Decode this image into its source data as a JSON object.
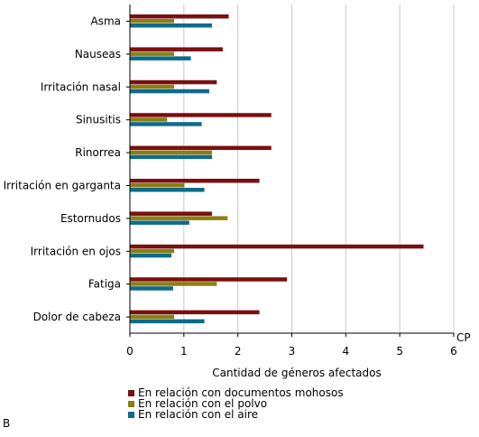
{
  "chart_data": {
    "type": "bar",
    "orientation": "horizontal",
    "categories": [
      "Asma",
      "Nauseas",
      "Irritación nasal",
      "Sinusitis",
      "Rinorrea",
      "Irritación en garganta",
      "Estornudos",
      "Irritación en ojos",
      "Fatiga",
      "Dolor de cabeza"
    ],
    "series": [
      {
        "name": "En relación con documentos mohosos",
        "color": "#7b0f0f",
        "values": [
          1.83,
          1.72,
          1.61,
          2.62,
          2.62,
          2.4,
          1.52,
          5.44,
          2.91,
          2.4
        ]
      },
      {
        "name": "En relación con el polvo",
        "color": "#8c7f12",
        "values": [
          0.82,
          0.82,
          0.82,
          0.69,
          1.52,
          1.01,
          1.81,
          0.82,
          1.61,
          0.82
        ]
      },
      {
        "name": "En relación con el aire",
        "color": "#0f6a8c",
        "values": [
          1.52,
          1.13,
          1.47,
          1.33,
          1.52,
          1.38,
          1.1,
          0.77,
          0.8,
          1.38
        ]
      }
    ],
    "xlabel": "Cantidad de géneros afectados",
    "xaxis_unit": "CP",
    "xlim": [
      0,
      6
    ],
    "xticks": [
      "0",
      "1",
      "2",
      "3",
      "4",
      "5",
      "6"
    ],
    "grid": true,
    "legend_position": "bottom-left",
    "panel_label": "B"
  }
}
